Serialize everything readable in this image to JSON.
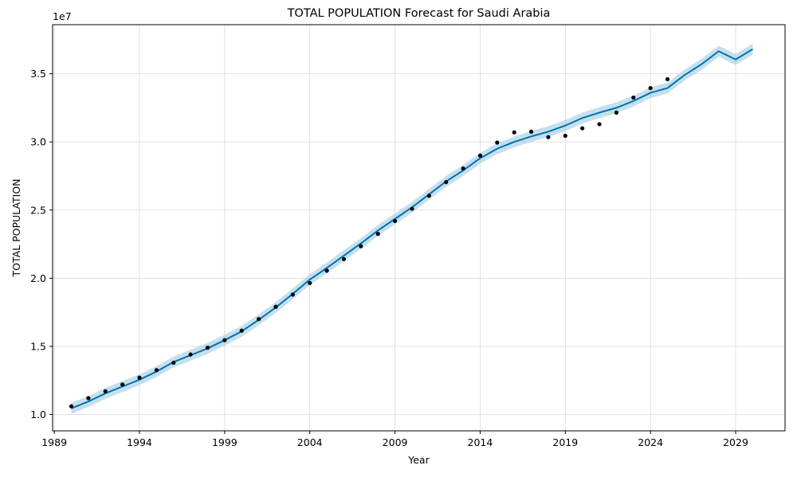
{
  "chart_data": {
    "type": "line",
    "title": "TOTAL POPULATION Forecast for Saudi Arabia",
    "xlabel": "Year",
    "ylabel": "TOTAL POPULATION",
    "y_offset_text": "1e7",
    "xlim": [
      1988.9,
      2031.9
    ],
    "ylim": [
      8800000,
      38600000
    ],
    "x_ticks": [
      1989,
      1994,
      1999,
      2004,
      2009,
      2014,
      2019,
      2024,
      2029
    ],
    "y_ticks": [
      10000000,
      15000000,
      20000000,
      25000000,
      30000000,
      35000000
    ],
    "y_tick_labels": [
      "1.0",
      "1.5",
      "2.0",
      "2.5",
      "3.0",
      "3.5"
    ],
    "grid": true,
    "colors": {
      "forecast_line": "#0072b2",
      "uncertainty_band": "#9ecae1",
      "actual_points": "#000000",
      "grid": "#d9d9d9"
    },
    "series": [
      {
        "kind": "actual",
        "x": [
          1990,
          1991,
          1992,
          1993,
          1994,
          1995,
          1996,
          1997,
          1998,
          1999,
          2000,
          2001,
          2002,
          2003,
          2004,
          2005,
          2006,
          2007,
          2008,
          2009,
          2010,
          2011,
          2012,
          2013,
          2014,
          2015,
          2016,
          2017,
          2018,
          2019,
          2020,
          2021,
          2022,
          2023,
          2024,
          2025
        ],
        "values": [
          10600000,
          11200000,
          11700000,
          12200000,
          12700000,
          13250000,
          13800000,
          14400000,
          14900000,
          15450000,
          16150000,
          17000000,
          17900000,
          18800000,
          19650000,
          20550000,
          21400000,
          22350000,
          23250000,
          24200000,
          25100000,
          26050000,
          27050000,
          28050000,
          29000000,
          29950000,
          30700000,
          30750000,
          30350000,
          30450000,
          31000000,
          31300000,
          32150000,
          33250000,
          33950000,
          34600000
        ]
      },
      {
        "kind": "forecast",
        "x": [
          1990,
          1991,
          1992,
          1993,
          1994,
          1995,
          1996,
          1997,
          1998,
          1999,
          2000,
          2001,
          2002,
          2003,
          2004,
          2005,
          2006,
          2007,
          2008,
          2009,
          2010,
          2011,
          2012,
          2013,
          2014,
          2015,
          2016,
          2017,
          2018,
          2019,
          2020,
          2021,
          2022,
          2023,
          2024,
          2025,
          2026,
          2027,
          2028,
          2029,
          2030
        ],
        "values": [
          10450000,
          10950000,
          11550000,
          12050000,
          12550000,
          13150000,
          13850000,
          14350000,
          14850000,
          15450000,
          16100000,
          16950000,
          17850000,
          18850000,
          19900000,
          20750000,
          21650000,
          22550000,
          23500000,
          24350000,
          25200000,
          26150000,
          27100000,
          27900000,
          28800000,
          29500000,
          30000000,
          30400000,
          30750000,
          31200000,
          31750000,
          32150000,
          32500000,
          33000000,
          33600000,
          33950000,
          34900000,
          35700000,
          36650000,
          36050000,
          36800000
        ],
        "lower": [
          10050000,
          10550000,
          11150000,
          11650000,
          12150000,
          12750000,
          13450000,
          13950000,
          14450000,
          15050000,
          15700000,
          16550000,
          17450000,
          18450000,
          19500000,
          20350000,
          21250000,
          22150000,
          23100000,
          23950000,
          24800000,
          25750000,
          26700000,
          27500000,
          28400000,
          29100000,
          29600000,
          30000000,
          30350000,
          30800000,
          31350000,
          31750000,
          32100000,
          32600000,
          33200000,
          33550000,
          34500000,
          35300000,
          36250000,
          35650000,
          36400000
        ],
        "upper": [
          10850000,
          11350000,
          11950000,
          12450000,
          12950000,
          13550000,
          14250000,
          14750000,
          15250000,
          15850000,
          16500000,
          17350000,
          18250000,
          19250000,
          20300000,
          21150000,
          22050000,
          22950000,
          23900000,
          24750000,
          25600000,
          26550000,
          27500000,
          28300000,
          29200000,
          29900000,
          30400000,
          30800000,
          31150000,
          31600000,
          32150000,
          32550000,
          32900000,
          33400000,
          34000000,
          34350000,
          35300000,
          36100000,
          37050000,
          36450000,
          37200000
        ]
      }
    ]
  }
}
